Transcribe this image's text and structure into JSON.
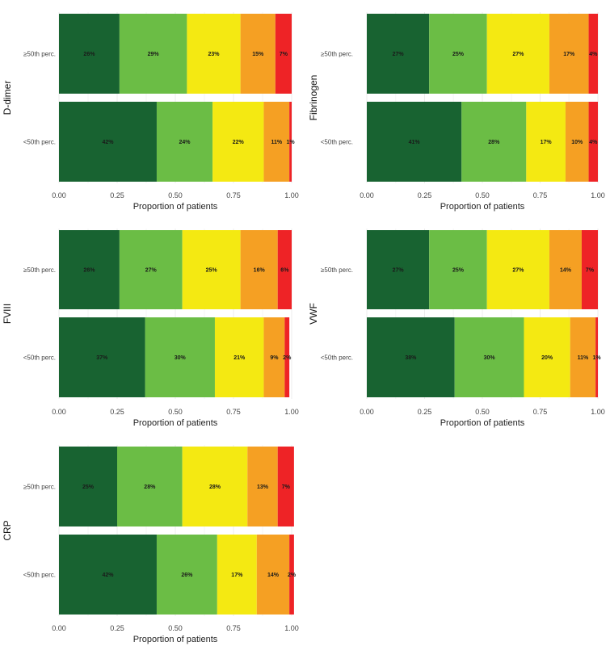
{
  "chart_data": {
    "type": "stacked-bar-horizontal",
    "xlabel": "Proportion of patients",
    "xlim": [
      0,
      1
    ],
    "x_ticks": [
      "0.00",
      "0.25",
      "0.50",
      "0.75",
      "1.00"
    ],
    "x_tick_values": [
      0,
      0.25,
      0.5,
      0.75,
      1
    ],
    "categories": [
      "≥50th perc.",
      "<50th perc."
    ],
    "colors": [
      "#186331",
      "#6bbd45",
      "#f4e912",
      "#f5a023",
      "#ee2326"
    ],
    "panels": [
      {
        "title": "D-dimer",
        "bars": [
          {
            "category": "≥50th perc.",
            "values": [
              0.26,
              0.29,
              0.23,
              0.15,
              0.07
            ],
            "labels": [
              "26%",
              "29%",
              "23%",
              "15%",
              "7%"
            ]
          },
          {
            "category": "<50th perc.",
            "values": [
              0.42,
              0.24,
              0.22,
              0.11,
              0.01
            ],
            "labels": [
              "42%",
              "24%",
              "22%",
              "11%",
              "1%"
            ]
          }
        ]
      },
      {
        "title": "Fibrinogen",
        "bars": [
          {
            "category": "≥50th perc.",
            "values": [
              0.27,
              0.25,
              0.27,
              0.17,
              0.04
            ],
            "labels": [
              "27%",
              "25%",
              "27%",
              "17%",
              "4%"
            ]
          },
          {
            "category": "<50th perc.",
            "values": [
              0.41,
              0.28,
              0.17,
              0.1,
              0.04
            ],
            "labels": [
              "41%",
              "28%",
              "17%",
              "10%",
              "4%"
            ]
          }
        ]
      },
      {
        "title": "FVIII",
        "bars": [
          {
            "category": "≥50th perc.",
            "values": [
              0.26,
              0.27,
              0.25,
              0.16,
              0.06
            ],
            "labels": [
              "26%",
              "27%",
              "25%",
              "16%",
              "6%"
            ]
          },
          {
            "category": "<50th perc.",
            "values": [
              0.37,
              0.3,
              0.21,
              0.09,
              0.02
            ],
            "labels": [
              "37%",
              "30%",
              "21%",
              "9%",
              "2%"
            ]
          }
        ]
      },
      {
        "title": "VWF",
        "bars": [
          {
            "category": "≥50th perc.",
            "values": [
              0.27,
              0.25,
              0.27,
              0.14,
              0.07
            ],
            "labels": [
              "27%",
              "25%",
              "27%",
              "14%",
              "7%"
            ]
          },
          {
            "category": "<50th perc.",
            "values": [
              0.38,
              0.3,
              0.2,
              0.11,
              0.01
            ],
            "labels": [
              "38%",
              "30%",
              "20%",
              "11%",
              "1%"
            ]
          }
        ]
      },
      {
        "title": "CRP",
        "bars": [
          {
            "category": "≥50th perc.",
            "values": [
              0.25,
              0.28,
              0.28,
              0.13,
              0.07
            ],
            "labels": [
              "25%",
              "28%",
              "28%",
              "13%",
              "7%"
            ]
          },
          {
            "category": "<50th perc.",
            "values": [
              0.42,
              0.26,
              0.17,
              0.14,
              0.02
            ],
            "labels": [
              "42%",
              "26%",
              "17%",
              "14%",
              "2%"
            ]
          }
        ]
      }
    ]
  }
}
